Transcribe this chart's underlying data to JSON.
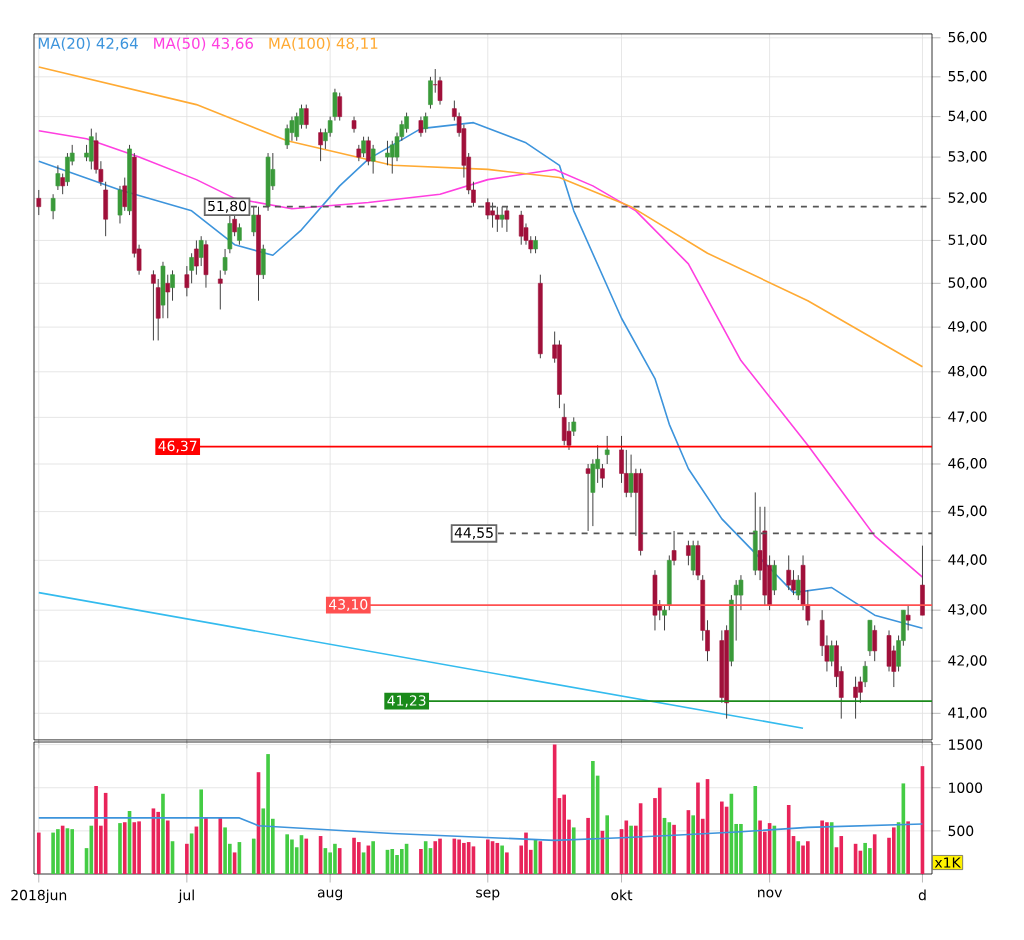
{
  "chart_data": [
    {
      "type": "candlestick",
      "log": true,
      "grid": true,
      "legend": "top left",
      "tick_labels": "y",
      "xlim": [
        "2018-05-31",
        "2018-12-05"
      ],
      "ylim": [
        40.5,
        56.1
      ],
      "xticks": [
        {
          "value": "2018-06-01",
          "label": null
        },
        {
          "value": "2018-07-02",
          "label": null
        },
        {
          "value": "2018-08-01",
          "label": null
        },
        {
          "value": "2018-09-03",
          "label": null
        },
        {
          "value": "2018-10-01",
          "label": null
        },
        {
          "value": "2018-11-01",
          "label": null
        },
        {
          "value": "2018-12-03",
          "label": null
        }
      ],
      "yticks": [
        {
          "value": 41,
          "label": "41,00"
        },
        {
          "value": 42,
          "label": "42,00"
        },
        {
          "value": 43,
          "label": "43,00"
        },
        {
          "value": 44,
          "label": "44,00"
        },
        {
          "value": 45,
          "label": "45,00"
        },
        {
          "value": 46,
          "label": "46,00"
        },
        {
          "value": 47,
          "label": "47,00"
        },
        {
          "value": 48,
          "label": "48,00"
        },
        {
          "value": 49,
          "label": "49,00"
        },
        {
          "value": 50,
          "label": "50,00"
        },
        {
          "value": 51,
          "label": "51,00"
        },
        {
          "value": 52,
          "label": "52,00"
        },
        {
          "value": 53,
          "label": "53,00"
        },
        {
          "value": 54,
          "label": "54,00"
        },
        {
          "value": 55,
          "label": "55,00"
        },
        {
          "value": 56,
          "label": "56,00"
        }
      ],
      "x": [
        "2018-06-01",
        "2018-06-04",
        "2018-06-05",
        "2018-06-06",
        "2018-06-07",
        "2018-06-08",
        "2018-06-11",
        "2018-06-12",
        "2018-06-13",
        "2018-06-14",
        "2018-06-15",
        "2018-06-18",
        "2018-06-19",
        "2018-06-20",
        "2018-06-21",
        "2018-06-22",
        "2018-06-25",
        "2018-06-26",
        "2018-06-27",
        "2018-06-28",
        "2018-06-29",
        "2018-07-02",
        "2018-07-03",
        "2018-07-04",
        "2018-07-05",
        "2018-07-06",
        "2018-07-09",
        "2018-07-10",
        "2018-07-11",
        "2018-07-12",
        "2018-07-13",
        "2018-07-16",
        "2018-07-17",
        "2018-07-18",
        "2018-07-19",
        "2018-07-20",
        "2018-07-23",
        "2018-07-24",
        "2018-07-25",
        "2018-07-26",
        "2018-07-27",
        "2018-07-30",
        "2018-07-31",
        "2018-08-01",
        "2018-08-02",
        "2018-08-03",
        "2018-08-06",
        "2018-08-07",
        "2018-08-08",
        "2018-08-09",
        "2018-08-10",
        "2018-08-13",
        "2018-08-14",
        "2018-08-15",
        "2018-08-16",
        "2018-08-17",
        "2018-08-20",
        "2018-08-21",
        "2018-08-22",
        "2018-08-23",
        "2018-08-24",
        "2018-08-27",
        "2018-08-28",
        "2018-08-29",
        "2018-08-30",
        "2018-08-31",
        "2018-09-03",
        "2018-09-04",
        "2018-09-05",
        "2018-09-06",
        "2018-09-07",
        "2018-09-10",
        "2018-09-11",
        "2018-09-12",
        "2018-09-13",
        "2018-09-14",
        "2018-09-17",
        "2018-09-18",
        "2018-09-19",
        "2018-09-20",
        "2018-09-21",
        "2018-09-24",
        "2018-09-25",
        "2018-09-26",
        "2018-09-27",
        "2018-09-28",
        "2018-10-01",
        "2018-10-02",
        "2018-10-03",
        "2018-10-04",
        "2018-10-05",
        "2018-10-08",
        "2018-10-09",
        "2018-10-10",
        "2018-10-11",
        "2018-10-12",
        "2018-10-15",
        "2018-10-16",
        "2018-10-17",
        "2018-10-18",
        "2018-10-19",
        "2018-10-22",
        "2018-10-23",
        "2018-10-24",
        "2018-10-25",
        "2018-10-26",
        "2018-10-29",
        "2018-10-30",
        "2018-10-31",
        "2018-11-01",
        "2018-11-02",
        "2018-11-05",
        "2018-11-06",
        "2018-11-07",
        "2018-11-08",
        "2018-11-09",
        "2018-11-12",
        "2018-11-13",
        "2018-11-14",
        "2018-11-15",
        "2018-11-16",
        "2018-11-19",
        "2018-11-20",
        "2018-11-21",
        "2018-11-22",
        "2018-11-23",
        "2018-11-26",
        "2018-11-27",
        "2018-11-28",
        "2018-11-29",
        "2018-11-30",
        "2018-12-03"
      ],
      "ohlc": [
        [
          52.0,
          52.2,
          51.6,
          51.8
        ],
        [
          51.7,
          52.1,
          51.5,
          52.0
        ],
        [
          52.3,
          52.8,
          52.2,
          52.6
        ],
        [
          52.5,
          52.6,
          52.1,
          52.3
        ],
        [
          52.4,
          53.1,
          52.3,
          53.0
        ],
        [
          52.9,
          53.3,
          52.8,
          53.1
        ],
        [
          53.0,
          53.3,
          52.9,
          53.1
        ],
        [
          52.9,
          53.7,
          52.7,
          53.5
        ],
        [
          53.4,
          53.6,
          52.6,
          52.7
        ],
        [
          52.7,
          52.9,
          52.3,
          52.4
        ],
        [
          52.2,
          52.4,
          51.1,
          51.5
        ],
        [
          51.6,
          52.3,
          51.4,
          52.2
        ],
        [
          52.3,
          52.5,
          51.7,
          51.8
        ],
        [
          51.7,
          53.3,
          51.6,
          53.2
        ],
        [
          53.0,
          53.1,
          50.6,
          50.7
        ],
        [
          50.8,
          50.9,
          50.2,
          50.3
        ],
        [
          50.2,
          50.3,
          48.7,
          50.0
        ],
        [
          49.9,
          50.1,
          48.7,
          49.2
        ],
        [
          49.5,
          50.5,
          49.2,
          50.4
        ],
        [
          50.0,
          50.2,
          49.2,
          49.8
        ],
        [
          49.9,
          50.3,
          49.6,
          50.2
        ],
        [
          50.2,
          50.4,
          49.7,
          49.9
        ],
        [
          50.3,
          50.7,
          50.0,
          50.6
        ],
        [
          50.8,
          51.0,
          50.2,
          50.4
        ],
        [
          50.6,
          51.1,
          50.4,
          51.0
        ],
        [
          50.9,
          51.0,
          49.9,
          50.2
        ],
        [
          50.1,
          50.3,
          49.4,
          50.0
        ],
        [
          50.3,
          50.8,
          50.2,
          50.6
        ],
        [
          50.8,
          51.6,
          50.7,
          51.4
        ],
        [
          51.5,
          51.6,
          51.1,
          51.2
        ],
        [
          51.0,
          51.4,
          50.9,
          51.3
        ],
        [
          51.2,
          51.8,
          51.1,
          51.6
        ],
        [
          51.6,
          51.8,
          49.6,
          50.2
        ],
        [
          50.2,
          50.9,
          50.1,
          50.8
        ],
        [
          51.8,
          53.1,
          51.7,
          53.0
        ],
        [
          52.3,
          53.1,
          52.2,
          52.7
        ],
        [
          53.3,
          53.8,
          53.2,
          53.7
        ],
        [
          53.6,
          54.0,
          53.4,
          53.9
        ],
        [
          53.5,
          54.1,
          53.4,
          54.0
        ],
        [
          53.8,
          54.3,
          53.7,
          54.2
        ],
        [
          54.2,
          54.3,
          53.7,
          53.8
        ],
        [
          53.6,
          53.7,
          52.9,
          53.3
        ],
        [
          53.4,
          53.7,
          53.2,
          53.6
        ],
        [
          53.6,
          54.0,
          53.5,
          53.9
        ],
        [
          54.0,
          54.7,
          53.9,
          54.6
        ],
        [
          54.5,
          54.6,
          53.9,
          54.0
        ],
        [
          53.9,
          54.0,
          53.6,
          53.7
        ],
        [
          53.2,
          53.3,
          52.9,
          53.0
        ],
        [
          53.1,
          53.5,
          53.0,
          53.4
        ],
        [
          53.4,
          53.5,
          52.8,
          52.9
        ],
        [
          52.9,
          53.3,
          52.6,
          53.2
        ],
        [
          53.0,
          53.4,
          52.8,
          53.1
        ],
        [
          53.0,
          53.4,
          52.6,
          53.3
        ],
        [
          53.0,
          53.6,
          52.9,
          53.5
        ],
        [
          53.5,
          53.9,
          53.4,
          53.8
        ],
        [
          53.7,
          54.1,
          53.6,
          54.0
        ],
        [
          53.9,
          54.0,
          53.5,
          53.6
        ],
        [
          53.7,
          54.1,
          53.6,
          54.0
        ],
        [
          54.3,
          55.0,
          54.2,
          54.9
        ],
        [
          54.8,
          55.2,
          54.6,
          54.8
        ],
        [
          54.9,
          55.0,
          54.3,
          54.4
        ],
        [
          54.2,
          54.4,
          53.9,
          54.0
        ],
        [
          54.0,
          54.1,
          53.5,
          53.6
        ],
        [
          53.7,
          53.8,
          52.5,
          52.8
        ],
        [
          53.0,
          53.1,
          52.1,
          52.2
        ],
        [
          52.2,
          52.4,
          51.8,
          51.9
        ],
        [
          51.9,
          52.0,
          51.5,
          51.6
        ],
        [
          51.7,
          51.9,
          51.3,
          51.6
        ],
        [
          51.6,
          51.8,
          51.2,
          51.5
        ],
        [
          51.5,
          51.8,
          51.3,
          51.6
        ],
        [
          51.7,
          51.8,
          51.2,
          51.5
        ],
        [
          51.6,
          51.7,
          50.9,
          51.1
        ],
        [
          51.3,
          51.4,
          50.9,
          51.0
        ],
        [
          51.0,
          51.1,
          50.7,
          50.8
        ],
        [
          50.8,
          51.1,
          50.7,
          51.0
        ],
        [
          50.0,
          50.2,
          48.3,
          48.4
        ],
        [
          48.6,
          48.9,
          48.2,
          48.3
        ],
        [
          48.6,
          48.7,
          47.2,
          47.5
        ],
        [
          47.0,
          47.3,
          46.4,
          46.5
        ],
        [
          46.7,
          46.9,
          46.3,
          46.4
        ],
        [
          46.7,
          47.0,
          46.6,
          46.9
        ],
        [
          45.9,
          46.0,
          44.6,
          45.8
        ],
        [
          45.4,
          46.1,
          44.7,
          46.0
        ],
        [
          45.9,
          46.4,
          45.6,
          46.1
        ],
        [
          45.9,
          46.0,
          45.5,
          45.7
        ],
        [
          46.2,
          46.6,
          46.0,
          46.3
        ],
        [
          46.3,
          46.6,
          45.6,
          45.8
        ],
        [
          45.8,
          46.3,
          45.3,
          45.4
        ],
        [
          45.4,
          46.2,
          45.3,
          45.8
        ],
        [
          45.8,
          45.9,
          44.5,
          45.4
        ],
        [
          45.8,
          45.9,
          44.1,
          44.2
        ],
        [
          43.7,
          43.8,
          42.6,
          42.9
        ],
        [
          43.1,
          43.2,
          42.8,
          43.0
        ],
        [
          42.9,
          43.1,
          42.6,
          43.0
        ],
        [
          43.1,
          44.1,
          43.0,
          44.0
        ],
        [
          44.2,
          44.6,
          43.9,
          44.0
        ],
        [
          44.3,
          44.4,
          43.9,
          44.1
        ],
        [
          43.8,
          44.4,
          43.7,
          44.3
        ],
        [
          44.3,
          44.4,
          43.6,
          43.7
        ],
        [
          43.6,
          43.7,
          42.4,
          42.6
        ],
        [
          42.6,
          42.8,
          42.0,
          42.2
        ],
        [
          42.4,
          42.6,
          41.2,
          41.3
        ],
        [
          42.6,
          42.7,
          40.9,
          41.2
        ],
        [
          42.0,
          43.3,
          41.9,
          43.2
        ],
        [
          43.3,
          43.6,
          42.4,
          43.5
        ],
        [
          43.3,
          43.7,
          43.0,
          43.6
        ],
        [
          43.8,
          45.4,
          43.7,
          44.6
        ],
        [
          44.2,
          45.1,
          43.6,
          43.8
        ],
        [
          44.6,
          45.1,
          43.1,
          43.3
        ],
        [
          43.9,
          44.1,
          43.0,
          43.1
        ],
        [
          43.4,
          44.0,
          43.3,
          43.9
        ],
        [
          43.8,
          44.1,
          43.4,
          43.5
        ],
        [
          43.6,
          43.8,
          43.3,
          43.4
        ],
        [
          43.3,
          43.7,
          43.2,
          43.6
        ],
        [
          43.9,
          44.1,
          43.0,
          43.1
        ],
        [
          43.1,
          43.4,
          42.7,
          42.8
        ],
        [
          42.8,
          43.0,
          42.1,
          42.3
        ],
        [
          42.3,
          42.5,
          41.8,
          42.0
        ],
        [
          42.0,
          42.4,
          41.9,
          42.3
        ],
        [
          42.3,
          42.4,
          41.5,
          41.7
        ],
        [
          41.8,
          41.9,
          40.9,
          41.3
        ],
        [
          41.5,
          41.7,
          40.9,
          41.3
        ],
        [
          41.6,
          41.7,
          41.2,
          41.4
        ],
        [
          41.6,
          42.0,
          41.5,
          41.9
        ],
        [
          42.2,
          42.8,
          42.1,
          42.8
        ],
        [
          42.6,
          42.7,
          42.0,
          42.2
        ],
        [
          42.5,
          42.6,
          41.8,
          41.9
        ],
        [
          42.2,
          42.3,
          41.5,
          41.8
        ],
        [
          41.9,
          42.5,
          41.8,
          42.4
        ],
        [
          42.4,
          43.0,
          42.3,
          43.0
        ],
        [
          42.9,
          43.1,
          42.6,
          42.8
        ],
        [
          43.5,
          44.3,
          42.9,
          42.9
        ]
      ],
      "colors": [
        "#a0103a",
        "#3a9a3a",
        "#3a9a3a",
        "#a0103a",
        "#3a9a3a",
        "#3a9a3a",
        "#3a9a3a",
        "#3a9a3a",
        "#a0103a",
        "#a0103a",
        "#a0103a",
        "#3a9a3a",
        "#a0103a",
        "#3a9a3a",
        "#a0103a",
        "#a0103a",
        "#a0103a",
        "#a0103a",
        "#3a9a3a",
        "#a0103a",
        "#3a9a3a",
        "#a0103a",
        "#3a9a3a",
        "#a0103a",
        "#3a9a3a",
        "#a0103a",
        "#a0103a",
        "#3a9a3a",
        "#3a9a3a",
        "#a0103a",
        "#3a9a3a",
        "#3a9a3a",
        "#a0103a",
        "#3a9a3a",
        "#3a9a3a",
        "#3a9a3a",
        "#3a9a3a",
        "#3a9a3a",
        "#3a9a3a",
        "#3a9a3a",
        "#a0103a",
        "#a0103a",
        "#3a9a3a",
        "#3a9a3a",
        "#3a9a3a",
        "#a0103a",
        "#a0103a",
        "#a0103a",
        "#3a9a3a",
        "#a0103a",
        "#3a9a3a",
        "#3a9a3a",
        "#3a9a3a",
        "#3a9a3a",
        "#3a9a3a",
        "#3a9a3a",
        "#a0103a",
        "#3a9a3a",
        "#3a9a3a",
        "#a0103a",
        "#a0103a",
        "#a0103a",
        "#a0103a",
        "#a0103a",
        "#a0103a",
        "#a0103a",
        "#a0103a",
        "#a0103a",
        "#a0103a",
        "#3a9a3a",
        "#a0103a",
        "#a0103a",
        "#a0103a",
        "#a0103a",
        "#3a9a3a",
        "#a0103a",
        "#a0103a",
        "#a0103a",
        "#a0103a",
        "#a0103a",
        "#3a9a3a",
        "#a0103a",
        "#3a9a3a",
        "#3a9a3a",
        "#a0103a",
        "#3a9a3a",
        "#a0103a",
        "#a0103a",
        "#3a9a3a",
        "#a0103a",
        "#a0103a",
        "#a0103a",
        "#a0103a",
        "#3a9a3a",
        "#3a9a3a",
        "#a0103a",
        "#a0103a",
        "#3a9a3a",
        "#a0103a",
        "#a0103a",
        "#a0103a",
        "#a0103a",
        "#a0103a",
        "#3a9a3a",
        "#3a9a3a",
        "#3a9a3a",
        "#3a9a3a",
        "#a0103a",
        "#a0103a",
        "#a0103a",
        "#3a9a3a",
        "#a0103a",
        "#a0103a",
        "#3a9a3a",
        "#a0103a",
        "#a0103a",
        "#a0103a",
        "#a0103a",
        "#3a9a3a",
        "#a0103a",
        "#a0103a",
        "#a0103a",
        "#a0103a",
        "#3a9a3a",
        "#3a9a3a",
        "#a0103a",
        "#a0103a",
        "#a0103a",
        "#3a9a3a",
        "#3a9a3a",
        "#a0103a",
        "#a0103a"
      ],
      "series": [
        {
          "type": "line",
          "name": "MA(20) 42,64",
          "color": "#3d94dc",
          "x": [
            "2018-06-01",
            "2018-06-18",
            "2018-07-03",
            "2018-07-12",
            "2018-07-20",
            "2018-07-26",
            "2018-08-03",
            "2018-08-09",
            "2018-08-20",
            "2018-08-31",
            "2018-09-11",
            "2018-09-18",
            "2018-09-21",
            "2018-10-01",
            "2018-10-08",
            "2018-10-11",
            "2018-10-15",
            "2018-10-22",
            "2018-10-31",
            "2018-11-06",
            "2018-11-14",
            "2018-11-23",
            "2018-12-03"
          ],
          "values": [
            52.9,
            52.2,
            51.7,
            50.9,
            50.65,
            51.25,
            52.3,
            52.95,
            53.7,
            53.85,
            53.35,
            52.8,
            51.7,
            49.2,
            47.85,
            46.85,
            45.9,
            44.85,
            null,
            43.35,
            43.45,
            42.9,
            42.64
          ]
        },
        {
          "type": "line",
          "name": "MA(50) 43,66",
          "color": "#ff3fe0",
          "x": [
            "2018-06-01",
            "2018-06-11",
            "2018-06-22",
            "2018-07-04",
            "2018-07-12",
            "2018-07-24",
            "2018-08-09",
            "2018-08-24",
            "2018-09-03",
            "2018-09-17",
            "2018-09-25",
            "2018-10-04",
            "2018-10-15",
            "2018-10-26",
            "2018-11-09",
            "2018-11-23",
            "2018-12-03"
          ],
          "values": [
            53.65,
            53.45,
            53.0,
            52.45,
            52.0,
            51.75,
            51.9,
            52.1,
            52.45,
            52.7,
            52.3,
            51.7,
            50.45,
            48.25,
            46.4,
            44.5,
            43.66
          ]
        },
        {
          "type": "line",
          "name": "MA(100) 48,11",
          "color": "#ffaa33",
          "x": [
            "2018-06-01",
            "2018-07-04",
            "2018-07-23",
            "2018-08-14",
            "2018-09-03",
            "2018-09-18",
            "2018-10-03",
            "2018-10-19",
            "2018-11-09",
            "2018-12-03"
          ],
          "values": [
            55.25,
            54.3,
            53.4,
            52.8,
            52.7,
            52.5,
            51.8,
            50.7,
            49.6,
            48.11
          ]
        },
        {
          "type": "line",
          "color": "#33bbee",
          "x": [
            "2018-06-01",
            "2018-11-08"
          ],
          "values": [
            43.35,
            40.72
          ]
        }
      ],
      "ref_lines": [
        {
          "axis": "y",
          "value": 51.8,
          "label": "51,80",
          "color": "#555555",
          "line_style": "dashed"
        },
        {
          "axis": "y",
          "value": 46.37,
          "label": "46,37",
          "color": "#ff0000",
          "line_style": "solid"
        },
        {
          "axis": "y",
          "value": 44.55,
          "label": "44,55",
          "color": "#555555",
          "line_style": "dashed"
        },
        {
          "axis": "y",
          "value": 43.1,
          "label": "43,10",
          "color": "#ff5050",
          "line_style": "solid"
        },
        {
          "axis": "y",
          "value": 41.23,
          "label": "41,23",
          "color": "#1a8a1a",
          "line_style": "solid"
        }
      ]
    },
    {
      "type": "bar",
      "grid": true,
      "annotations": [
        "x1K"
      ],
      "xlim": [
        "2018-05-31",
        "2018-12-05"
      ],
      "ylim": [
        0,
        1530
      ],
      "xticks": [
        {
          "value": "2018-06-01",
          "label": "2018jun"
        },
        {
          "value": "2018-07-02",
          "label": "jul"
        },
        {
          "value": "2018-08-01",
          "label": "aug"
        },
        {
          "value": "2018-09-03",
          "label": "sep"
        },
        {
          "value": "2018-10-01",
          "label": "okt"
        },
        {
          "value": "2018-11-01",
          "label": "nov"
        },
        {
          "value": "2018-12-03",
          "label": "d"
        }
      ],
      "yticks": [
        500,
        1000,
        1500
      ],
      "x": [
        "2018-06-01",
        "2018-06-04",
        "2018-06-05",
        "2018-06-06",
        "2018-06-07",
        "2018-06-08",
        "2018-06-11",
        "2018-06-12",
        "2018-06-13",
        "2018-06-14",
        "2018-06-15",
        "2018-06-18",
        "2018-06-19",
        "2018-06-20",
        "2018-06-21",
        "2018-06-22",
        "2018-06-25",
        "2018-06-26",
        "2018-06-27",
        "2018-06-28",
        "2018-06-29",
        "2018-07-02",
        "2018-07-03",
        "2018-07-04",
        "2018-07-05",
        "2018-07-06",
        "2018-07-09",
        "2018-07-10",
        "2018-07-11",
        "2018-07-12",
        "2018-07-13",
        "2018-07-16",
        "2018-07-17",
        "2018-07-18",
        "2018-07-19",
        "2018-07-20",
        "2018-07-23",
        "2018-07-24",
        "2018-07-25",
        "2018-07-26",
        "2018-07-27",
        "2018-07-30",
        "2018-07-31",
        "2018-08-01",
        "2018-08-02",
        "2018-08-03",
        "2018-08-06",
        "2018-08-07",
        "2018-08-08",
        "2018-08-09",
        "2018-08-10",
        "2018-08-13",
        "2018-08-14",
        "2018-08-15",
        "2018-08-16",
        "2018-08-17",
        "2018-08-20",
        "2018-08-21",
        "2018-08-22",
        "2018-08-23",
        "2018-08-24",
        "2018-08-27",
        "2018-08-28",
        "2018-08-29",
        "2018-08-30",
        "2018-08-31",
        "2018-09-03",
        "2018-09-04",
        "2018-09-05",
        "2018-09-06",
        "2018-09-07",
        "2018-09-10",
        "2018-09-11",
        "2018-09-12",
        "2018-09-13",
        "2018-09-14",
        "2018-09-17",
        "2018-09-18",
        "2018-09-19",
        "2018-09-20",
        "2018-09-21",
        "2018-09-24",
        "2018-09-25",
        "2018-09-26",
        "2018-09-27",
        "2018-09-28",
        "2018-10-01",
        "2018-10-02",
        "2018-10-03",
        "2018-10-04",
        "2018-10-05",
        "2018-10-08",
        "2018-10-09",
        "2018-10-10",
        "2018-10-11",
        "2018-10-12",
        "2018-10-15",
        "2018-10-16",
        "2018-10-17",
        "2018-10-18",
        "2018-10-19",
        "2018-10-22",
        "2018-10-23",
        "2018-10-24",
        "2018-10-25",
        "2018-10-26",
        "2018-10-29",
        "2018-10-30",
        "2018-10-31",
        "2018-11-01",
        "2018-11-02",
        "2018-11-05",
        "2018-11-06",
        "2018-11-07",
        "2018-11-08",
        "2018-11-09",
        "2018-11-12",
        "2018-11-13",
        "2018-11-14",
        "2018-11-15",
        "2018-11-16",
        "2018-11-19",
        "2018-11-20",
        "2018-11-21",
        "2018-11-22",
        "2018-11-23",
        "2018-11-26",
        "2018-11-27",
        "2018-11-28",
        "2018-11-29",
        "2018-11-30",
        "2018-12-03"
      ],
      "series": [
        {
          "values": [
            480,
            480,
            520,
            560,
            530,
            520,
            300,
            560,
            1020,
            560,
            940,
            590,
            600,
            730,
            600,
            610,
            760,
            720,
            930,
            620,
            380,
            350,
            470,
            550,
            980,
            650,
            650,
            540,
            350,
            250,
            370,
            410,
            1180,
            760,
            1390,
            640,
            460,
            400,
            310,
            450,
            410,
            440,
            300,
            250,
            350,
            300,
            420,
            370,
            250,
            330,
            380,
            280,
            290,
            220,
            290,
            350,
            290,
            380,
            300,
            380,
            410,
            410,
            400,
            360,
            370,
            320,
            400,
            380,
            360,
            330,
            250,
            330,
            480,
            280,
            400,
            380,
            1500,
            880,
            920,
            630,
            540,
            650,
            1310,
            1140,
            500,
            680,
            520,
            620,
            560,
            560,
            820,
            880,
            1000,
            650,
            600,
            570,
            740,
            680,
            1060,
            640,
            1100,
            840,
            780,
            930,
            580,
            580,
            1020,
            620,
            490,
            590,
            560,
            800,
            440,
            380,
            330,
            380,
            620,
            600,
            600,
            310,
            440,
            350,
            270,
            360,
            300,
            460,
            420,
            540,
            600,
            1050,
            610,
            1250
          ],
          "colors": [
            "#e8245a",
            "#44cc44",
            "#44cc44",
            "#e8245a",
            "#44cc44",
            "#44cc44",
            "#44cc44",
            "#44cc44",
            "#e8245a",
            "#e8245a",
            "#e8245a",
            "#44cc44",
            "#e8245a",
            "#44cc44",
            "#e8245a",
            "#e8245a",
            "#e8245a",
            "#e8245a",
            "#44cc44",
            "#e8245a",
            "#44cc44",
            "#e8245a",
            "#44cc44",
            "#e8245a",
            "#44cc44",
            "#e8245a",
            "#e8245a",
            "#44cc44",
            "#44cc44",
            "#e8245a",
            "#44cc44",
            "#44cc44",
            "#e8245a",
            "#44cc44",
            "#44cc44",
            "#44cc44",
            "#44cc44",
            "#44cc44",
            "#44cc44",
            "#44cc44",
            "#e8245a",
            "#e8245a",
            "#44cc44",
            "#44cc44",
            "#44cc44",
            "#e8245a",
            "#e8245a",
            "#e8245a",
            "#44cc44",
            "#e8245a",
            "#44cc44",
            "#44cc44",
            "#44cc44",
            "#44cc44",
            "#44cc44",
            "#44cc44",
            "#e8245a",
            "#44cc44",
            "#44cc44",
            "#e8245a",
            "#e8245a",
            "#e8245a",
            "#e8245a",
            "#e8245a",
            "#e8245a",
            "#e8245a",
            "#e8245a",
            "#e8245a",
            "#e8245a",
            "#44cc44",
            "#e8245a",
            "#e8245a",
            "#e8245a",
            "#e8245a",
            "#44cc44",
            "#e8245a",
            "#e8245a",
            "#e8245a",
            "#e8245a",
            "#e8245a",
            "#44cc44",
            "#e8245a",
            "#44cc44",
            "#44cc44",
            "#e8245a",
            "#44cc44",
            "#e8245a",
            "#e8245a",
            "#44cc44",
            "#e8245a",
            "#e8245a",
            "#e8245a",
            "#e8245a",
            "#44cc44",
            "#44cc44",
            "#e8245a",
            "#e8245a",
            "#44cc44",
            "#e8245a",
            "#e8245a",
            "#e8245a",
            "#e8245a",
            "#e8245a",
            "#44cc44",
            "#44cc44",
            "#44cc44",
            "#44cc44",
            "#e8245a",
            "#e8245a",
            "#e8245a",
            "#44cc44",
            "#e8245a",
            "#e8245a",
            "#44cc44",
            "#e8245a",
            "#e8245a",
            "#e8245a",
            "#e8245a",
            "#44cc44",
            "#e8245a",
            "#e8245a",
            "#e8245a",
            "#e8245a",
            "#44cc44",
            "#44cc44",
            "#e8245a",
            "#e8245a",
            "#e8245a",
            "#44cc44",
            "#44cc44",
            "#e8245a",
            "#e8245a"
          ]
        },
        {
          "type": "line",
          "color": "#3d94dc",
          "x": [
            "2018-06-01",
            "2018-07-13",
            "2018-07-17",
            "2018-08-14",
            "2018-09-17",
            "2018-10-01",
            "2018-10-12",
            "2018-10-26",
            "2018-11-09",
            "2018-12-03"
          ],
          "values": [
            650,
            650,
            560,
            470,
            390,
            420,
            450,
            490,
            540,
            580
          ]
        }
      ]
    }
  ]
}
